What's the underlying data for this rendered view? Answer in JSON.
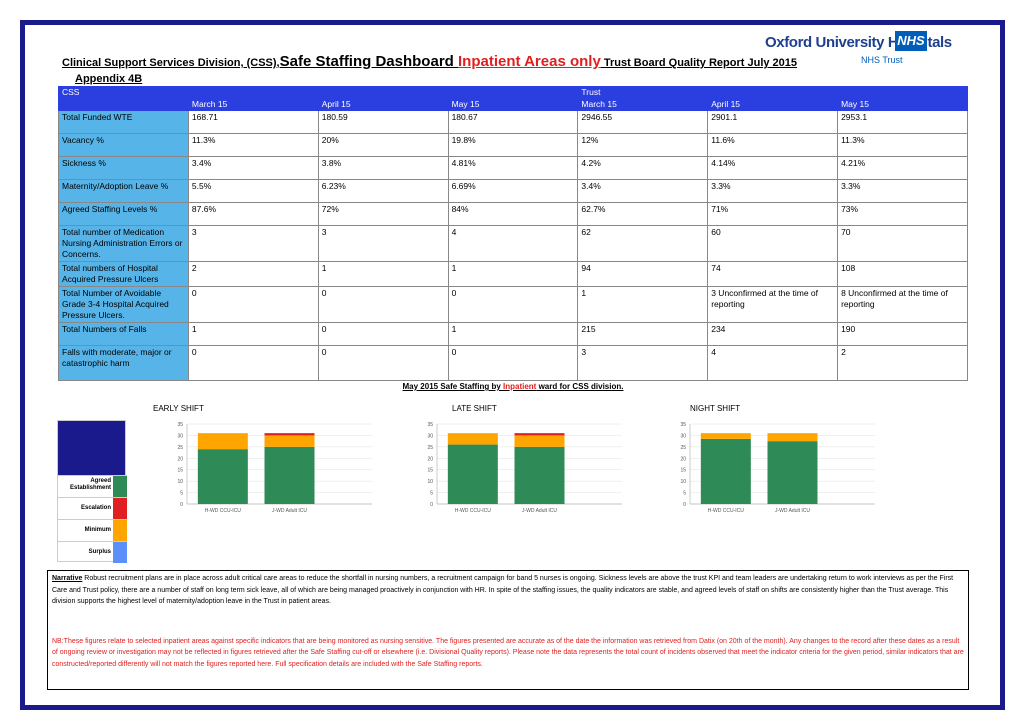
{
  "header": {
    "title_part1": "Clinical Support Services Division, (CSS),",
    "title_part2": "Safe Staffing Dashboard ",
    "title_part3": "Inpatient Areas only",
    "title_part4": " Trust Board Quality Report July 2015",
    "appendix": "Appendix 4B"
  },
  "logo": {
    "name": "Oxford University Hospitals",
    "nhs": "NHS",
    "trust": "NHS Trust"
  },
  "table": {
    "group_css": "CSS",
    "group_trust": "Trust",
    "months": [
      "March 15",
      "April 15",
      "May 15",
      "March 15",
      "April 15",
      "May 15"
    ],
    "rows": [
      {
        "label": "Total Funded WTE",
        "values": [
          "168.71",
          "180.59",
          "180.67",
          "2946.55",
          "2901.1",
          "2953.1"
        ]
      },
      {
        "label": "Vacancy %",
        "values": [
          "11.3%",
          "20%",
          "19.8%",
          "12%",
          "11.6%",
          "11.3%"
        ]
      },
      {
        "label": "Sickness %",
        "values": [
          "3.4%",
          "3.8%",
          "4.81%",
          "4.2%",
          "4.14%",
          "4.21%"
        ]
      },
      {
        "label": "Maternity/Adoption Leave %",
        "values": [
          "5.5%",
          "6.23%",
          "6.69%",
          "3.4%",
          "3.3%",
          "3.3%"
        ]
      },
      {
        "label": "Agreed Staffing Levels %",
        "values": [
          "87.6%",
          "72%",
          "84%",
          "62.7%",
          "71%",
          "73%"
        ]
      },
      {
        "label": "Total number of Medication Nursing Administration Errors or Concerns.",
        "values": [
          "3",
          "3",
          "4",
          "62",
          "60",
          "70"
        ]
      },
      {
        "label": "Total numbers of Hospital Acquired Pressure Ulcers",
        "values": [
          "2",
          "1",
          "1",
          "94",
          "74",
          "108"
        ]
      },
      {
        "label": "Total Number of Avoidable Grade 3-4 Hospital Acquired Pressure Ulcers.",
        "values": [
          "0",
          "0",
          "0",
          "1",
          "3 Unconfirmed at the time of reporting",
          "8 Unconfirmed at the time of reporting"
        ]
      },
      {
        "label": "Total Numbers of Falls",
        "values": [
          "1",
          "0",
          "1",
          "215",
          "234",
          "190"
        ]
      },
      {
        "label": "Falls with moderate, major or catastrophic harm",
        "values": [
          "0",
          "0",
          "0",
          "3",
          "4",
          "2"
        ]
      }
    ]
  },
  "charts_section": {
    "title_part1": "May 2015  Safe Staffing by ",
    "title_part2": "Inpatient",
    "title_part3": " ward for CSS division.",
    "shifts": [
      "EARLY SHIFT",
      "LATE  SHIFT",
      "NIGHT SHIFT"
    ]
  },
  "legend": {
    "items": [
      {
        "label": "Agreed Establishment",
        "color": "#2e8b57"
      },
      {
        "label": "Escalation",
        "color": "#e02020"
      },
      {
        "label": "Minimum",
        "color": "#ffa500"
      },
      {
        "label": "Surplus",
        "color": "#5b8ff9"
      }
    ],
    "blank_color": "#1a1a8c"
  },
  "chart_data": [
    {
      "type": "bar",
      "title": "EARLY SHIFT",
      "categories": [
        "H-WD CCU-ICU",
        "J-WD Adult ICU"
      ],
      "ylim": [
        0,
        35
      ],
      "yticks": [
        0,
        5,
        10,
        15,
        20,
        25,
        30,
        35
      ],
      "stacked": true,
      "series": [
        {
          "name": "Agreed Establishment",
          "color": "#2e8b57",
          "values": [
            24,
            25
          ]
        },
        {
          "name": "Minimum",
          "color": "#ffa500",
          "values": [
            7,
            5
          ]
        },
        {
          "name": "Escalation",
          "color": "#e02020",
          "values": [
            0,
            1
          ]
        }
      ]
    },
    {
      "type": "bar",
      "title": "LATE  SHIFT",
      "categories": [
        "H-WD CCU-ICU",
        "J-WD Adult ICU"
      ],
      "ylim": [
        0,
        35
      ],
      "yticks": [
        0,
        5,
        10,
        15,
        20,
        25,
        30,
        35
      ],
      "stacked": true,
      "series": [
        {
          "name": "Agreed Establishment",
          "color": "#2e8b57",
          "values": [
            26,
            25
          ]
        },
        {
          "name": "Minimum",
          "color": "#ffa500",
          "values": [
            5,
            5
          ]
        },
        {
          "name": "Escalation",
          "color": "#e02020",
          "values": [
            0,
            1
          ]
        }
      ]
    },
    {
      "type": "bar",
      "title": "NIGHT SHIFT",
      "categories": [
        "H-WD CCU-ICU",
        "J-WD Adult ICU"
      ],
      "ylim": [
        0,
        35
      ],
      "yticks": [
        0,
        5,
        10,
        15,
        20,
        25,
        30,
        35
      ],
      "stacked": true,
      "series": [
        {
          "name": "Agreed Establishment",
          "color": "#2e8b57",
          "values": [
            28.5,
            27.5
          ]
        },
        {
          "name": "Minimum",
          "color": "#ffa500",
          "values": [
            2.5,
            3.5
          ]
        },
        {
          "name": "Escalation",
          "color": "#e02020",
          "values": [
            0,
            0
          ]
        }
      ]
    }
  ],
  "narrative": {
    "heading": "Narrative",
    "text": " Robust recruitment plans are in place across adult critical care areas to reduce the shortfall in nursing numbers, a recruitment campaign for band 5 nurses is ongoing. Sickness levels are above the trust KPI and team leaders are undertaking return to work interviews as per the First Care and Trust policy, there are a number of staff on long term sick leave, all of which are being managed proactively in conjunction with HR. In spite of the staffing issues, the quality indicators are stable, and agreed levels of staff on shifts are consistently higher than the Trust average. This division supports the highest level of maternity/adoption leave in the Trust in patient areas.",
    "nb": "NB:These figures relate to selected inpatient areas against specific indicators that are being monitored as nursing sensitive. The figures presented are accurate as of the date the information was retrieved from Datix (on 20th of the month). Any changes to the record after these dates as a result of ongoing review or investigation may not be reflected in figures retrieved after the Safe Staffing cut-off or elsewhere (i.e. Divisional Quality reports). Please note the data represents the total count of incidents observed that meet the indicator criteria for the given period, similar indicators that are constructed/reported differently will not match the figures reported here. Full specification details are included with the Safe Staffing reports."
  }
}
